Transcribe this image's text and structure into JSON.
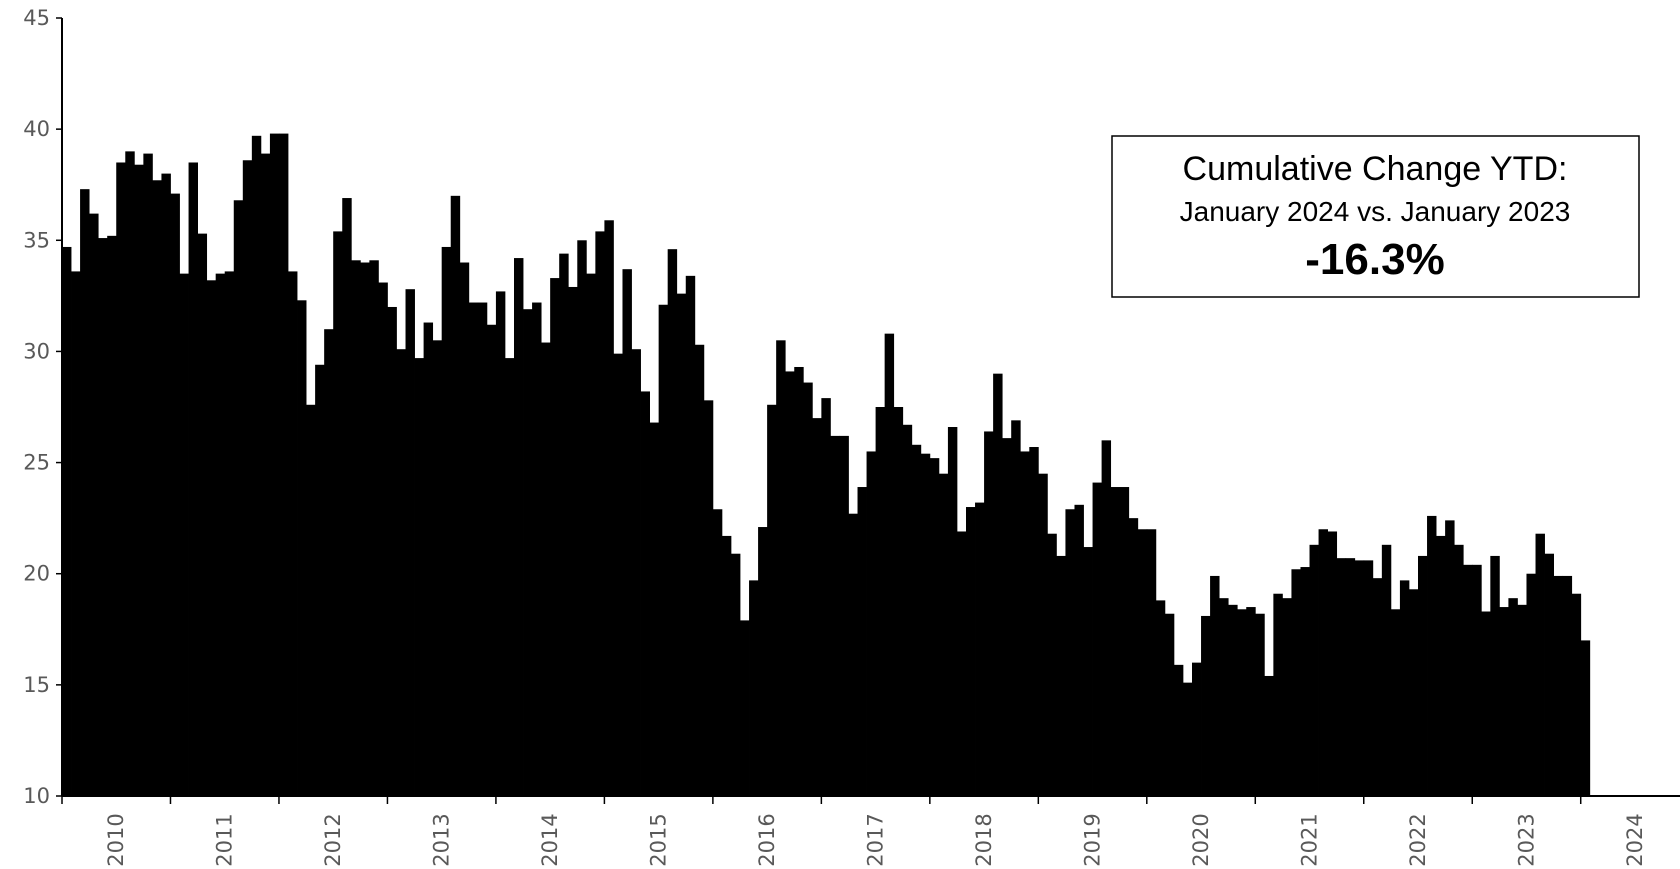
{
  "chart_data": {
    "type": "bar",
    "color": "#000000",
    "annotation": {
      "heading": "Cumulative Change YTD:",
      "subheading": "January 2024 vs. January 2023",
      "value": "-16.3%"
    },
    "categories": [
      "2010",
      null,
      null,
      null,
      null,
      null,
      null,
      null,
      null,
      null,
      null,
      null,
      "2011",
      null,
      null,
      null,
      null,
      null,
      null,
      null,
      null,
      null,
      null,
      null,
      "2012",
      null,
      null,
      null,
      null,
      null,
      null,
      null,
      null,
      null,
      null,
      null,
      "2013",
      null,
      null,
      null,
      null,
      null,
      null,
      null,
      null,
      null,
      null,
      null,
      "2014",
      null,
      null,
      null,
      null,
      null,
      null,
      null,
      null,
      null,
      null,
      null,
      "2015",
      null,
      null,
      null,
      null,
      null,
      null,
      null,
      null,
      null,
      null,
      null,
      "2016",
      null,
      null,
      null,
      null,
      null,
      null,
      null,
      null,
      null,
      null,
      null,
      "2017",
      null,
      null,
      null,
      null,
      null,
      null,
      null,
      null,
      null,
      null,
      null,
      "2018",
      null,
      null,
      null,
      null,
      null,
      null,
      null,
      null,
      null,
      null,
      null,
      "2019",
      null,
      null,
      null,
      null,
      null,
      null,
      null,
      null,
      null,
      null,
      null,
      "2020",
      null,
      null,
      null,
      null,
      null,
      null,
      null,
      null,
      null,
      null,
      null,
      "2021",
      null,
      null,
      null,
      null,
      null,
      null,
      null,
      null,
      null,
      null,
      null,
      "2022",
      null,
      null,
      null,
      null,
      null,
      null,
      null,
      null,
      null,
      null,
      null,
      "2023",
      null,
      null,
      null,
      null,
      null,
      null,
      null,
      null,
      null,
      null,
      null,
      "2024",
      null,
      null,
      null,
      null,
      null,
      null,
      null,
      null,
      null,
      null,
      null
    ],
    "values": [
      34.7,
      33.6,
      37.3,
      36.2,
      35.1,
      35.2,
      38.5,
      39.0,
      38.4,
      38.9,
      37.7,
      38.0,
      37.1,
      33.5,
      38.5,
      35.3,
      33.2,
      33.5,
      33.6,
      36.8,
      38.6,
      39.7,
      38.9,
      39.8,
      39.8,
      33.6,
      32.3,
      27.6,
      29.4,
      31.0,
      35.4,
      36.9,
      34.1,
      34.0,
      34.1,
      33.1,
      32.0,
      30.1,
      32.8,
      29.7,
      31.3,
      30.5,
      34.7,
      37.0,
      34.0,
      32.2,
      32.2,
      31.2,
      32.7,
      29.7,
      34.2,
      31.9,
      32.2,
      30.4,
      33.3,
      34.4,
      32.9,
      35.0,
      33.5,
      35.4,
      35.9,
      29.9,
      33.7,
      30.1,
      28.2,
      26.8,
      32.1,
      34.6,
      32.6,
      33.4,
      30.3,
      27.8,
      22.9,
      21.7,
      20.9,
      17.9,
      19.7,
      22.1,
      27.6,
      30.5,
      29.1,
      29.3,
      28.6,
      27.0,
      27.9,
      26.2,
      26.2,
      22.7,
      23.9,
      25.5,
      27.5,
      30.8,
      27.5,
      26.7,
      25.8,
      25.4,
      25.2,
      24.5,
      26.6,
      21.9,
      23.0,
      23.2,
      26.4,
      29.0,
      26.1,
      26.9,
      25.5,
      25.7,
      24.5,
      21.8,
      20.8,
      22.9,
      23.1,
      21.2,
      24.1,
      26.0,
      23.9,
      23.9,
      22.5,
      22.0,
      22.0,
      18.8,
      18.2,
      15.9,
      15.1,
      16.0,
      18.1,
      19.9,
      18.9,
      18.6,
      18.4,
      18.5,
      18.2,
      15.4,
      19.1,
      18.9,
      20.2,
      20.3,
      21.3,
      22.0,
      21.9,
      20.7,
      20.7,
      20.6,
      20.6,
      19.8,
      21.3,
      18.4,
      19.7,
      19.3,
      20.8,
      22.6,
      21.7,
      22.4,
      21.3,
      20.4,
      20.4,
      18.3,
      20.8,
      18.5,
      18.9,
      18.6,
      20.0,
      21.8,
      20.9,
      19.9,
      19.9,
      19.1,
      17.0,
      null,
      null,
      null,
      null,
      null,
      null,
      null,
      null,
      null,
      null,
      null
    ],
    "ylim": [
      10,
      45
    ],
    "yticks": [
      10,
      15,
      20,
      25,
      30,
      35,
      40,
      45
    ]
  }
}
